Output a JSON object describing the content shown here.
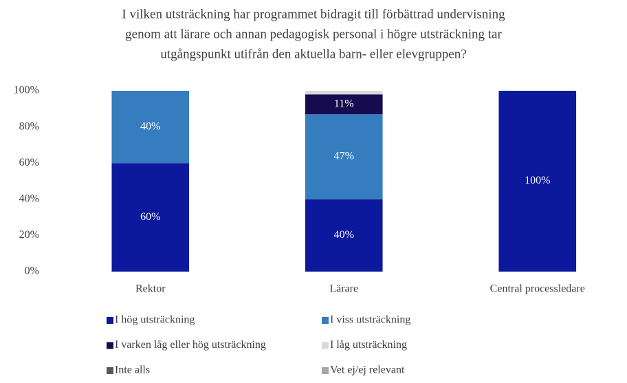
{
  "chart_data": {
    "type": "stacked_bar",
    "title": [
      "I vilken utsträckning har programmet bidragit till förbättrad undervisning",
      "genom att lärare och annan pedagogisk personal i högre utsträckning tar",
      "utgångspunkt utifrån den aktuella barn- eller elevgruppen?"
    ],
    "categories": [
      "Rektor",
      "Lärare",
      "Central processledare"
    ],
    "series": [
      {
        "name": "I hög utsträckning",
        "color": "#0c199c",
        "values": [
          60,
          40,
          100
        ],
        "value_labels": [
          "60%",
          "40%",
          "100%"
        ]
      },
      {
        "name": "I viss utsträckning",
        "color": "#367dc0",
        "values": [
          40,
          47,
          0
        ],
        "value_labels": [
          "40%",
          "47%",
          null
        ]
      },
      {
        "name": "I varken låg eller hög utsträckning",
        "color": "#170b4f",
        "values": [
          0,
          11,
          0
        ],
        "value_labels": [
          null,
          "11%",
          null
        ]
      },
      {
        "name": "I låg utsträckning",
        "color": "#d9d9d9",
        "values": [
          0,
          2,
          0
        ]
      },
      {
        "name": "Inte alls",
        "color": "#595959",
        "values": [
          0,
          0,
          0
        ]
      },
      {
        "name": "Vet ej/ej relevant",
        "color": "#a6a6a6",
        "values": [
          0,
          0,
          0
        ]
      }
    ],
    "ylim": [
      0,
      100
    ],
    "yticks": [
      {
        "value": 0,
        "label": "0%"
      },
      {
        "value": 20,
        "label": "20%"
      },
      {
        "value": 40,
        "label": "40%"
      },
      {
        "value": 60,
        "label": "60%"
      },
      {
        "value": 80,
        "label": "80%"
      },
      {
        "value": 100,
        "label": "100%"
      }
    ],
    "grid": false,
    "legend": "bottom"
  }
}
